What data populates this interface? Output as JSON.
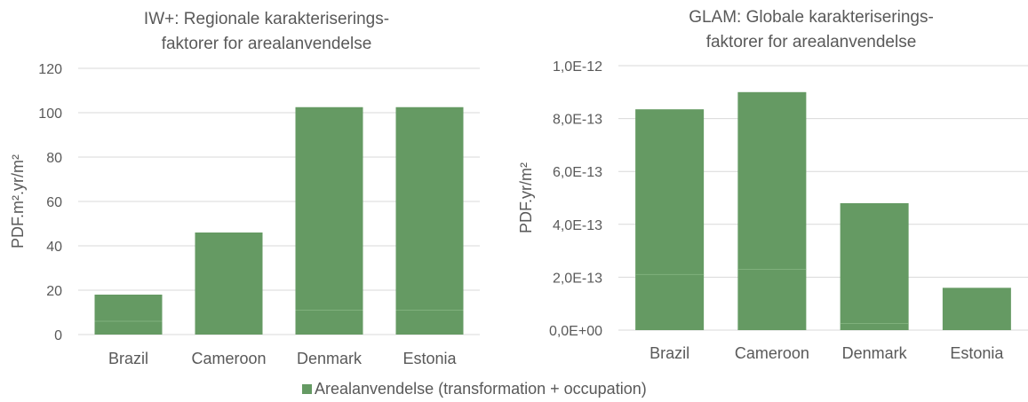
{
  "colors": {
    "bar": "#659A63",
    "grid": "#D9D9D9",
    "text": "#595959",
    "segment_line": "#7FB07C"
  },
  "legend": {
    "label": "Arealanvendelse (transformation + occupation)"
  },
  "chart_data": [
    {
      "type": "bar",
      "stacked_parts": true,
      "title_lines": [
        "IW+: Regionale karakteriserings-",
        "faktorer for arealanvendelse"
      ],
      "ylabel": "PDF.m².yr/m²",
      "ylim": [
        0,
        120
      ],
      "yticks": [
        0,
        20,
        40,
        60,
        80,
        100,
        120
      ],
      "ytick_labels": [
        "0",
        "20",
        "40",
        "60",
        "80",
        "100",
        "120"
      ],
      "categories": [
        "Brazil",
        "Cameroon",
        "Denmark",
        "Estonia"
      ],
      "series": [
        {
          "name": "Arealanvendelse (transformation + occupation)",
          "values": [
            18,
            46,
            102.5,
            102.5
          ],
          "inner_segment": [
            6,
            0,
            11,
            11
          ]
        }
      ]
    },
    {
      "type": "bar",
      "stacked_parts": true,
      "title_lines": [
        "GLAM: Globale karakteriserings-",
        "faktorer for arealanvendelse"
      ],
      "ylabel": "PDF.yr/m²",
      "ylim": [
        0,
        1e-12
      ],
      "yticks": [
        0,
        2e-13,
        4e-13,
        6e-13,
        8e-13,
        1e-12
      ],
      "ytick_labels": [
        "0,0E+00",
        "2,0E-13",
        "4,0E-13",
        "6,0E-13",
        "8,0E-13",
        "1,0E-12"
      ],
      "categories": [
        "Brazil",
        "Cameroon",
        "Denmark",
        "Estonia"
      ],
      "series": [
        {
          "name": "Arealanvendelse (transformation + occupation)",
          "values": [
            8.35e-13,
            9e-13,
            4.8e-13,
            1.6e-13
          ],
          "inner_segment": [
            2.1e-13,
            2.3e-13,
            2.5e-14,
            0
          ]
        }
      ]
    }
  ]
}
